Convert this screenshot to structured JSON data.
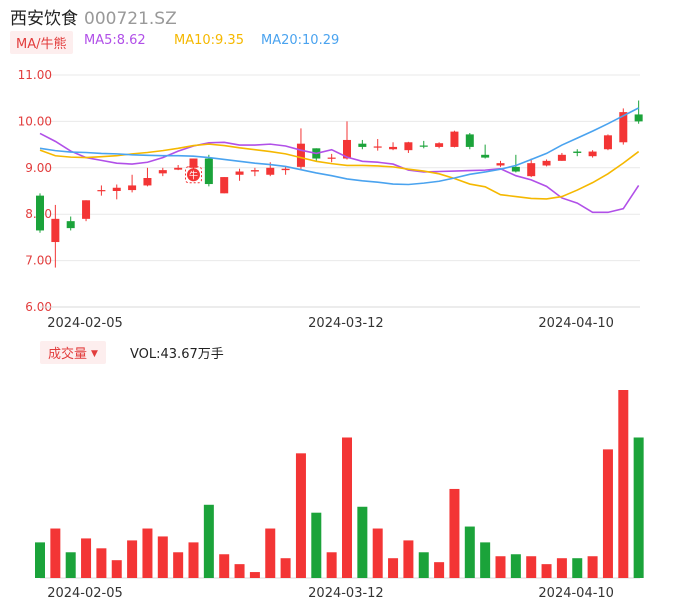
{
  "header": {
    "name": "西安饮食",
    "code": "000721.SZ"
  },
  "ma_legend": {
    "tag": "MA/牛熊",
    "items": [
      {
        "label": "MA5:8.62",
        "color": "#b150e8"
      },
      {
        "label": "MA10:9.35",
        "color": "#f5b800"
      },
      {
        "label": "MA20:10.29",
        "color": "#4aa3ef"
      }
    ]
  },
  "volume_legend": {
    "tag": "成交量",
    "value": "VOL:43.67万手"
  },
  "colors": {
    "up": "#f33535",
    "down": "#1ba33a",
    "grid": "#e9e9e9",
    "axis_text": "#e23d3d",
    "date_text": "#333333"
  },
  "chart_data": [
    {
      "type": "candlestick",
      "ylim": [
        6.0,
        11.0
      ],
      "yticks": [
        "11.00",
        "10.00",
        "9.00",
        "8.00",
        "7.00",
        "6.00"
      ],
      "xticks": [
        {
          "index": 0,
          "label": "2024-02-05"
        },
        {
          "index": 17,
          "label": "2024-03-12"
        },
        {
          "index": 32,
          "label": "2024-04-10"
        }
      ],
      "candles": [
        {
          "o": 8.4,
          "c": 7.65,
          "h": 8.45,
          "l": 7.6
        },
        {
          "o": 7.4,
          "c": 7.9,
          "h": 8.2,
          "l": 6.85
        },
        {
          "o": 7.85,
          "c": 7.7,
          "h": 7.95,
          "l": 7.65
        },
        {
          "o": 7.9,
          "c": 8.3,
          "h": 8.3,
          "l": 7.85
        },
        {
          "o": 8.5,
          "c": 8.52,
          "h": 8.62,
          "l": 8.4
        },
        {
          "o": 8.5,
          "c": 8.57,
          "h": 8.64,
          "l": 8.32
        },
        {
          "o": 8.52,
          "c": 8.62,
          "h": 8.85,
          "l": 8.47
        },
        {
          "o": 8.62,
          "c": 8.78,
          "h": 9.0,
          "l": 8.6
        },
        {
          "o": 8.88,
          "c": 8.95,
          "h": 9.0,
          "l": 8.82
        },
        {
          "o": 8.96,
          "c": 9.0,
          "h": 9.06,
          "l": 8.95
        },
        {
          "o": 9.0,
          "c": 9.2,
          "h": 9.2,
          "l": 8.95
        },
        {
          "o": 9.2,
          "c": 8.65,
          "h": 9.28,
          "l": 8.6
        },
        {
          "o": 8.45,
          "c": 8.8,
          "h": 8.8,
          "l": 8.45
        },
        {
          "o": 8.85,
          "c": 8.92,
          "h": 8.98,
          "l": 8.72
        },
        {
          "o": 8.92,
          "c": 8.95,
          "h": 9.0,
          "l": 8.82
        },
        {
          "o": 8.85,
          "c": 9.0,
          "h": 9.12,
          "l": 8.82
        },
        {
          "o": 8.95,
          "c": 8.98,
          "h": 9.03,
          "l": 8.85
        },
        {
          "o": 9.02,
          "c": 9.52,
          "h": 9.85,
          "l": 8.95
        },
        {
          "o": 9.42,
          "c": 9.2,
          "h": 9.42,
          "l": 9.15
        },
        {
          "o": 9.2,
          "c": 9.22,
          "h": 9.3,
          "l": 9.12
        },
        {
          "o": 9.2,
          "c": 9.6,
          "h": 10.0,
          "l": 9.18
        },
        {
          "o": 9.52,
          "c": 9.45,
          "h": 9.6,
          "l": 9.4
        },
        {
          "o": 9.45,
          "c": 9.46,
          "h": 9.62,
          "l": 9.37
        },
        {
          "o": 9.4,
          "c": 9.45,
          "h": 9.55,
          "l": 9.38
        },
        {
          "o": 9.38,
          "c": 9.55,
          "h": 9.56,
          "l": 9.32
        },
        {
          "o": 9.48,
          "c": 9.47,
          "h": 9.58,
          "l": 9.42
        },
        {
          "o": 9.45,
          "c": 9.53,
          "h": 9.55,
          "l": 9.42
        },
        {
          "o": 9.45,
          "c": 9.78,
          "h": 9.8,
          "l": 9.44
        },
        {
          "o": 9.72,
          "c": 9.45,
          "h": 9.75,
          "l": 9.4
        },
        {
          "o": 9.28,
          "c": 9.22,
          "h": 9.5,
          "l": 9.2
        },
        {
          "o": 9.05,
          "c": 9.1,
          "h": 9.15,
          "l": 9.02
        },
        {
          "o": 9.02,
          "c": 8.92,
          "h": 9.28,
          "l": 8.9
        },
        {
          "o": 8.82,
          "c": 9.1,
          "h": 9.2,
          "l": 8.8
        },
        {
          "o": 9.05,
          "c": 9.15,
          "h": 9.18,
          "l": 9.03
        },
        {
          "o": 9.15,
          "c": 9.28,
          "h": 9.32,
          "l": 9.15
        },
        {
          "o": 9.35,
          "c": 9.32,
          "h": 9.4,
          "l": 9.25
        },
        {
          "o": 9.25,
          "c": 9.35,
          "h": 9.38,
          "l": 9.22
        },
        {
          "o": 9.4,
          "c": 9.7,
          "h": 9.72,
          "l": 9.38
        },
        {
          "o": 9.55,
          "c": 10.2,
          "h": 10.28,
          "l": 9.5
        },
        {
          "o": 10.15,
          "c": 10.0,
          "h": 10.45,
          "l": 9.95
        }
      ],
      "ma": {
        "MA5": [
          9.74,
          9.57,
          9.36,
          9.22,
          9.16,
          9.1,
          9.08,
          9.12,
          9.22,
          9.36,
          9.47,
          9.54,
          9.55,
          9.49,
          9.49,
          9.51,
          9.47,
          9.38,
          9.31,
          9.39,
          9.23,
          9.14,
          9.12,
          9.08,
          8.95,
          8.91,
          8.92,
          8.93,
          8.94,
          8.95,
          8.98,
          8.83,
          8.74,
          8.6,
          8.35,
          8.24,
          8.04,
          8.04,
          8.12,
          8.62
        ],
        "MA10": [
          9.38,
          9.26,
          9.23,
          9.22,
          9.24,
          9.26,
          9.3,
          9.33,
          9.37,
          9.42,
          9.48,
          9.51,
          9.48,
          9.43,
          9.39,
          9.35,
          9.3,
          9.22,
          9.14,
          9.09,
          9.05,
          9.05,
          9.04,
          9.02,
          8.97,
          8.93,
          8.87,
          8.77,
          8.65,
          8.59,
          8.42,
          8.38,
          8.34,
          8.33,
          8.38,
          8.52,
          8.68,
          8.87,
          9.1,
          9.35
        ],
        "MA20": [
          9.42,
          9.37,
          9.34,
          9.33,
          9.31,
          9.3,
          9.28,
          9.27,
          9.26,
          9.26,
          9.25,
          9.22,
          9.18,
          9.14,
          9.1,
          9.07,
          9.03,
          8.96,
          8.89,
          8.83,
          8.76,
          8.72,
          8.69,
          8.65,
          8.64,
          8.67,
          8.71,
          8.78,
          8.86,
          8.91,
          8.97,
          9.05,
          9.18,
          9.31,
          9.49,
          9.64,
          9.79,
          9.95,
          10.12,
          10.29
        ]
      },
      "marker": {
        "index": 10,
        "label": "牛"
      }
    },
    {
      "type": "bar",
      "title": "VOL",
      "values": [
        18,
        25,
        13,
        20,
        15,
        9,
        19,
        25,
        21,
        13,
        18,
        37,
        12,
        7,
        3,
        25,
        10,
        63,
        33,
        13,
        71,
        36,
        25,
        10,
        19,
        13,
        8,
        45,
        26,
        18,
        11,
        12,
        11,
        7,
        10,
        10,
        11,
        65,
        95,
        71
      ]
    }
  ]
}
